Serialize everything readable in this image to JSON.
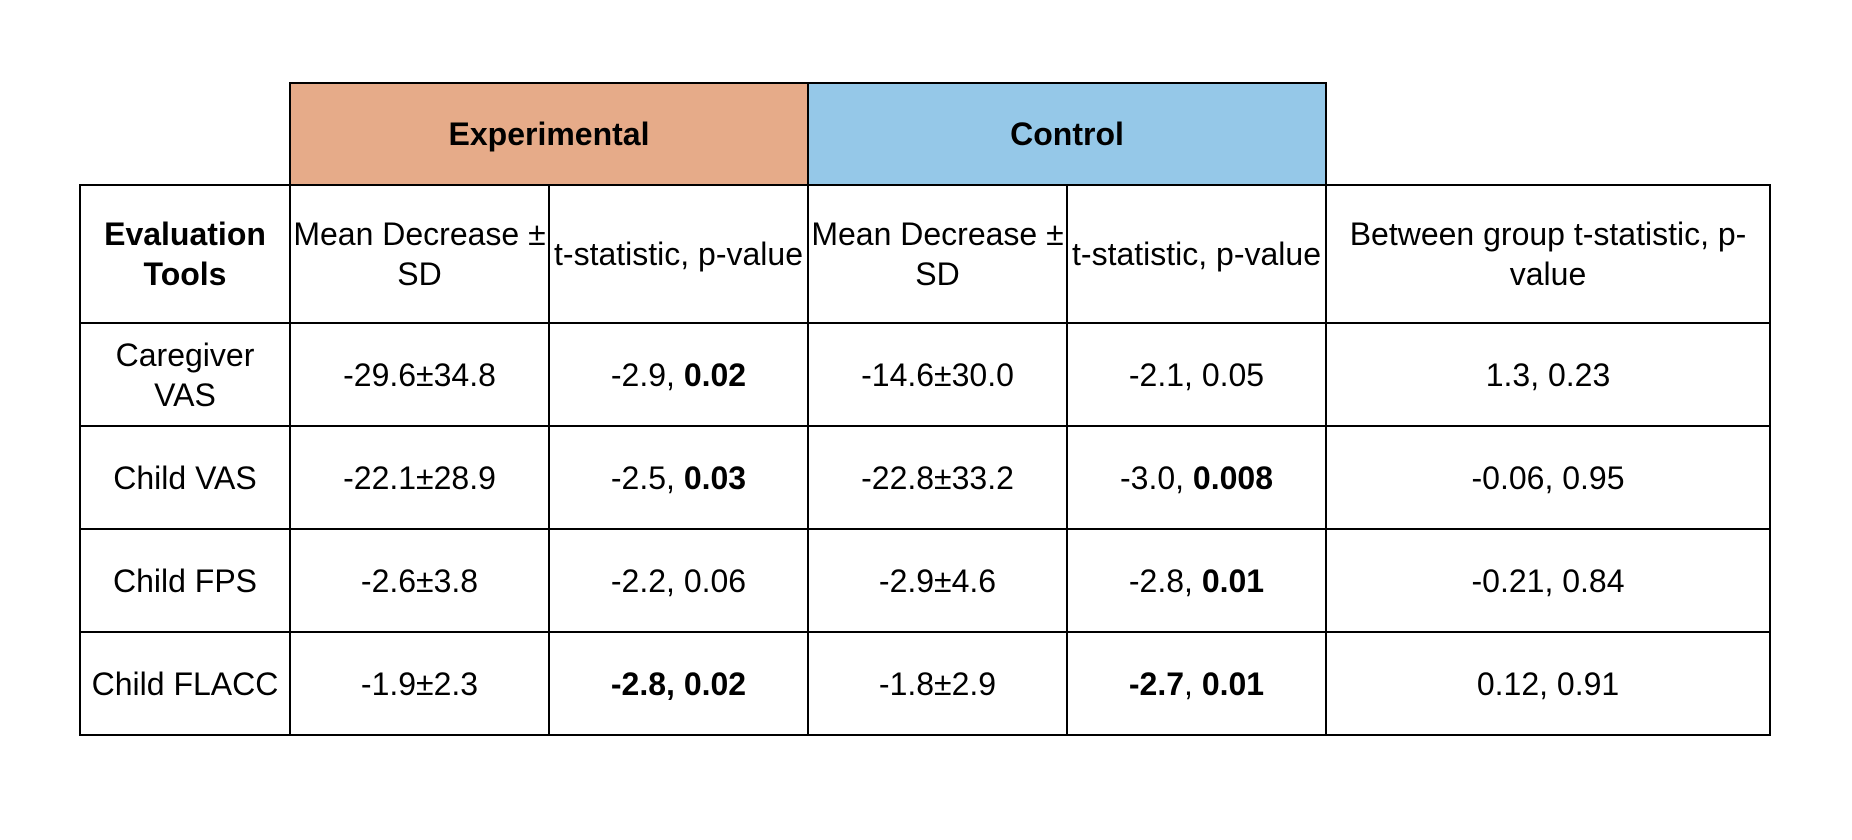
{
  "groups": {
    "experimental": "Experimental",
    "control": "Control"
  },
  "colors": {
    "experimental_bg": "#e6ab89",
    "control_bg": "#95c8e8"
  },
  "headers": {
    "tools": "Evaluation Tools",
    "exp_mean": "Mean Decrease ± SD",
    "exp_t": "t-statistic, p-value",
    "ctl_mean": "Mean Decrease ± SD",
    "ctl_t": "t-statistic, p-value",
    "between": "Between group t-statistic, p-value"
  },
  "rows": [
    {
      "tool": "Caregiver VAS",
      "exp_mean": "-29.6±34.8",
      "exp_t": "-2.9",
      "exp_p": "0.02",
      "ctl_mean": "-14.6±30.0",
      "ctl_t": "-2.1",
      "ctl_p": "0.05",
      "between": "1.3, 0.23"
    },
    {
      "tool": "Child VAS",
      "exp_mean": "-22.1±28.9",
      "exp_t": "-2.5",
      "exp_p": "0.03",
      "ctl_mean": "-22.8±33.2",
      "ctl_t": "-3.0",
      "ctl_p": "0.008",
      "between": "-0.06, 0.95"
    },
    {
      "tool": "Child FPS",
      "exp_mean": "-2.6±3.8",
      "exp_t": "-2.2",
      "exp_p": "0.06",
      "ctl_mean": "-2.9±4.6",
      "ctl_t": "-2.8",
      "ctl_p": "0.01",
      "between": "-0.21, 0.84"
    },
    {
      "tool": "Child FLACC",
      "exp_mean": "-1.9±2.3",
      "exp_t": "-2.8",
      "exp_p": "0.02",
      "ctl_mean": "-1.8±2.9",
      "ctl_t": "-2.7",
      "ctl_p": "0.01",
      "between": "0.12, 0.91"
    }
  ]
}
